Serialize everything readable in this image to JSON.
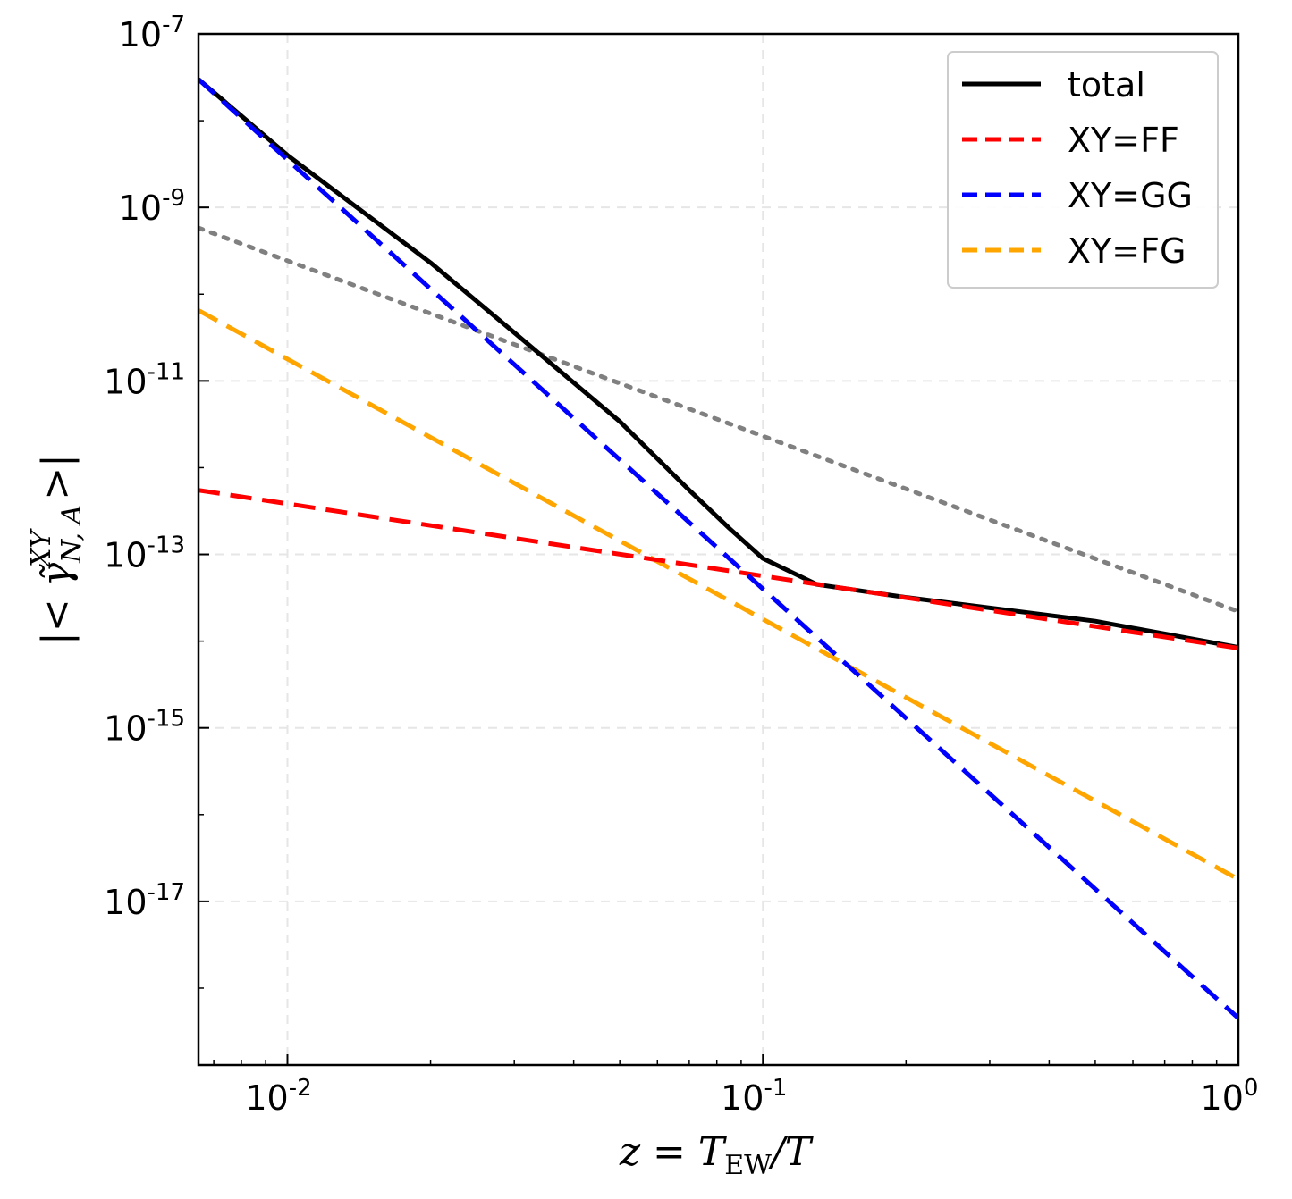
{
  "chart_data": {
    "type": "line",
    "xscale": "log",
    "yscale": "log",
    "xlabel": "z = T_EW / T",
    "ylabel": "| < γ̃^{XY}_{N,A} > |",
    "xlim": [
      0.0065,
      1.0
    ],
    "ylim": [
      1.3e-19,
      1e-07
    ],
    "x_ticks": [
      {
        "value": 0.01,
        "base": "10",
        "exp": "-2"
      },
      {
        "value": 0.1,
        "base": "10",
        "exp": "-1"
      },
      {
        "value": 1.0,
        "base": "10",
        "exp": "0"
      }
    ],
    "y_ticks": [
      {
        "value": 1e-07,
        "base": "10",
        "exp": "-7"
      },
      {
        "value": 1e-09,
        "base": "10",
        "exp": "-9"
      },
      {
        "value": 1e-11,
        "base": "10",
        "exp": "-11"
      },
      {
        "value": 1e-13,
        "base": "10",
        "exp": "-13"
      },
      {
        "value": 1e-15,
        "base": "10",
        "exp": "-15"
      },
      {
        "value": 1e-17,
        "base": "10",
        "exp": "-17"
      }
    ],
    "grid": true,
    "legend_position": "top-right",
    "series": [
      {
        "name": "total",
        "color": "#000000",
        "style": "solid",
        "x": [
          0.0065,
          0.01,
          0.02,
          0.03,
          0.05,
          0.07,
          0.085,
          0.1,
          0.13,
          0.2,
          0.5,
          1.0
        ],
        "y": [
          3e-08,
          4e-09,
          2.3e-10,
          3.6e-11,
          3.4e-12,
          5.5e-13,
          2e-13,
          9e-14,
          4.5e-14,
          3.2e-14,
          1.7e-14,
          8.5e-15
        ]
      },
      {
        "name": "XY=FF",
        "color": "#ff0000",
        "style": "dashed",
        "x": [
          0.0065,
          1.0
        ],
        "y": [
          5.5e-13,
          8.3e-15
        ]
      },
      {
        "name": "XY=GG",
        "color": "#0000ff",
        "style": "dashed",
        "x": [
          0.0065,
          1.0
        ],
        "y": [
          3e-08,
          4.5e-19
        ]
      },
      {
        "name": "XY=FG",
        "color": "#ffa500",
        "style": "dashed",
        "x": [
          0.0065,
          1.0
        ],
        "y": [
          6.5e-11,
          1.8e-17
        ]
      },
      {
        "color": "#808080",
        "style": "dotted",
        "x": [
          0.0065,
          1.0
        ],
        "y": [
          5.8e-10,
          2.2e-14
        ]
      }
    ]
  }
}
